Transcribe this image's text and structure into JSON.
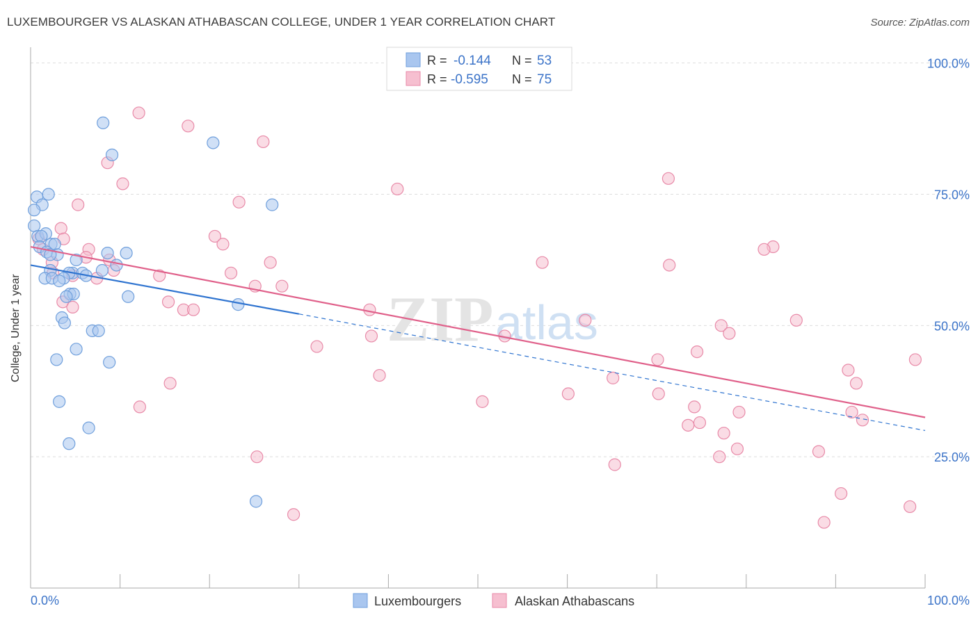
{
  "title": "LUXEMBOURGER VS ALASKAN ATHABASCAN COLLEGE, UNDER 1 YEAR CORRELATION CHART",
  "source": "Source: ZipAtlas.com",
  "watermark": {
    "zip": "ZIP",
    "atlas": "atlas"
  },
  "legend_top": {
    "rows": [
      {
        "r_label": "R =",
        "r_value": "-0.144",
        "n_label": "N =",
        "n_value": "53"
      },
      {
        "r_label": "R =",
        "r_value": "-0.595",
        "n_label": "N =",
        "n_value": "75"
      }
    ]
  },
  "legend_bottom": {
    "items": [
      "Luxembourgers",
      "Alaskan Athabascans"
    ]
  },
  "colors": {
    "lux_fill": "#a9c6ef",
    "lux_stroke": "#6f9fdc",
    "lux_line": "#2f74d0",
    "ala_fill": "#f6bfd0",
    "ala_stroke": "#e88aa8",
    "ala_line": "#e0608a",
    "value_blue": "#3b73c8",
    "grid": "#dddddd"
  },
  "chart_data": {
    "type": "scatter",
    "ylabel": "College, Under 1 year",
    "x_tick_labels": [
      "0.0%",
      "100.0%"
    ],
    "y_tick_labels": [
      "25.0%",
      "50.0%",
      "75.0%",
      "100.0%"
    ],
    "y_ticks": [
      25,
      50,
      75,
      100
    ],
    "xlim": [
      0,
      100
    ],
    "ylim": [
      0,
      103
    ],
    "series": [
      {
        "name": "Luxembourgers",
        "trend": {
          "x0": 0,
          "y0": 61.5,
          "x1": 30,
          "y1": 52.2,
          "dash_to_x": 100,
          "dash_to_y": 30.0
        },
        "points": [
          [
            8.1,
            88.6
          ],
          [
            20.4,
            84.8
          ],
          [
            9.1,
            82.5
          ],
          [
            2.0,
            75.0
          ],
          [
            0.7,
            74.5
          ],
          [
            1.3,
            73.0
          ],
          [
            0.4,
            72.0
          ],
          [
            27.0,
            73.0
          ],
          [
            0.4,
            69.0
          ],
          [
            0.8,
            67.0
          ],
          [
            1.7,
            67.5
          ],
          [
            1.2,
            67.0
          ],
          [
            1.0,
            65.0
          ],
          [
            2.3,
            65.5
          ],
          [
            2.7,
            65.5
          ],
          [
            1.8,
            64.0
          ],
          [
            8.6,
            63.8
          ],
          [
            10.7,
            63.8
          ],
          [
            3.0,
            63.5
          ],
          [
            2.2,
            63.5
          ],
          [
            5.1,
            62.5
          ],
          [
            9.6,
            61.5
          ],
          [
            2.2,
            60.5
          ],
          [
            4.7,
            60.0
          ],
          [
            4.3,
            60.0
          ],
          [
            5.8,
            60.0
          ],
          [
            6.2,
            59.5
          ],
          [
            8.0,
            60.5
          ],
          [
            1.6,
            59.0
          ],
          [
            2.4,
            59.0
          ],
          [
            3.7,
            59.0
          ],
          [
            3.2,
            58.5
          ],
          [
            4.4,
            56.0
          ],
          [
            4.8,
            56.0
          ],
          [
            4.0,
            55.5
          ],
          [
            10.9,
            55.5
          ],
          [
            23.2,
            54.0
          ],
          [
            3.5,
            51.5
          ],
          [
            3.8,
            50.5
          ],
          [
            6.9,
            49.0
          ],
          [
            7.6,
            49.0
          ],
          [
            5.1,
            45.5
          ],
          [
            2.9,
            43.5
          ],
          [
            8.8,
            43.0
          ],
          [
            3.2,
            35.5
          ],
          [
            6.5,
            30.5
          ],
          [
            4.3,
            27.5
          ],
          [
            25.2,
            16.5
          ]
        ]
      },
      {
        "name": "Alaskan Athabascans",
        "trend": {
          "x0": 0,
          "y0": 65.0,
          "x1": 100,
          "y1": 32.5
        },
        "points": [
          [
            12.1,
            90.5
          ],
          [
            17.6,
            88.0
          ],
          [
            26.0,
            85.0
          ],
          [
            8.6,
            81.0
          ],
          [
            10.3,
            77.0
          ],
          [
            41.0,
            76.0
          ],
          [
            71.3,
            78.0
          ],
          [
            5.3,
            73.0
          ],
          [
            23.3,
            73.5
          ],
          [
            3.4,
            68.5
          ],
          [
            20.6,
            67.0
          ],
          [
            21.5,
            65.5
          ],
          [
            0.9,
            66.5
          ],
          [
            3.7,
            66.5
          ],
          [
            83.0,
            65.0
          ],
          [
            82.0,
            64.5
          ],
          [
            6.5,
            64.5
          ],
          [
            1.4,
            64.5
          ],
          [
            6.2,
            63.0
          ],
          [
            8.8,
            62.5
          ],
          [
            26.8,
            62.0
          ],
          [
            57.2,
            62.0
          ],
          [
            71.4,
            61.5
          ],
          [
            2.4,
            62.0
          ],
          [
            9.3,
            60.5
          ],
          [
            22.4,
            60.0
          ],
          [
            2.5,
            60.0
          ],
          [
            14.4,
            59.5
          ],
          [
            7.4,
            59.0
          ],
          [
            25.1,
            57.5
          ],
          [
            28.1,
            57.5
          ],
          [
            4.7,
            59.5
          ],
          [
            3.6,
            54.5
          ],
          [
            15.4,
            54.5
          ],
          [
            4.7,
            53.5
          ],
          [
            17.1,
            53.0
          ],
          [
            18.2,
            53.0
          ],
          [
            37.9,
            53.0
          ],
          [
            62.0,
            51.0
          ],
          [
            85.6,
            51.0
          ],
          [
            77.2,
            50.0
          ],
          [
            78.1,
            48.5
          ],
          [
            53.0,
            48.0
          ],
          [
            38.1,
            48.0
          ],
          [
            32.0,
            46.0
          ],
          [
            74.5,
            45.0
          ],
          [
            70.1,
            43.5
          ],
          [
            98.9,
            43.5
          ],
          [
            91.4,
            41.5
          ],
          [
            39.0,
            40.5
          ],
          [
            65.1,
            40.0
          ],
          [
            15.6,
            39.0
          ],
          [
            92.3,
            39.0
          ],
          [
            70.2,
            37.0
          ],
          [
            60.1,
            37.0
          ],
          [
            50.5,
            35.5
          ],
          [
            74.2,
            34.5
          ],
          [
            12.2,
            34.5
          ],
          [
            79.2,
            33.5
          ],
          [
            91.8,
            33.5
          ],
          [
            93.0,
            32.0
          ],
          [
            74.8,
            31.5
          ],
          [
            73.5,
            31.0
          ],
          [
            77.5,
            29.5
          ],
          [
            79.0,
            26.5
          ],
          [
            88.1,
            26.0
          ],
          [
            77.0,
            25.0
          ],
          [
            25.3,
            25.0
          ],
          [
            65.3,
            23.5
          ],
          [
            90.6,
            18.0
          ],
          [
            98.3,
            15.5
          ],
          [
            29.4,
            14.0
          ],
          [
            88.7,
            12.5
          ]
        ]
      }
    ]
  }
}
